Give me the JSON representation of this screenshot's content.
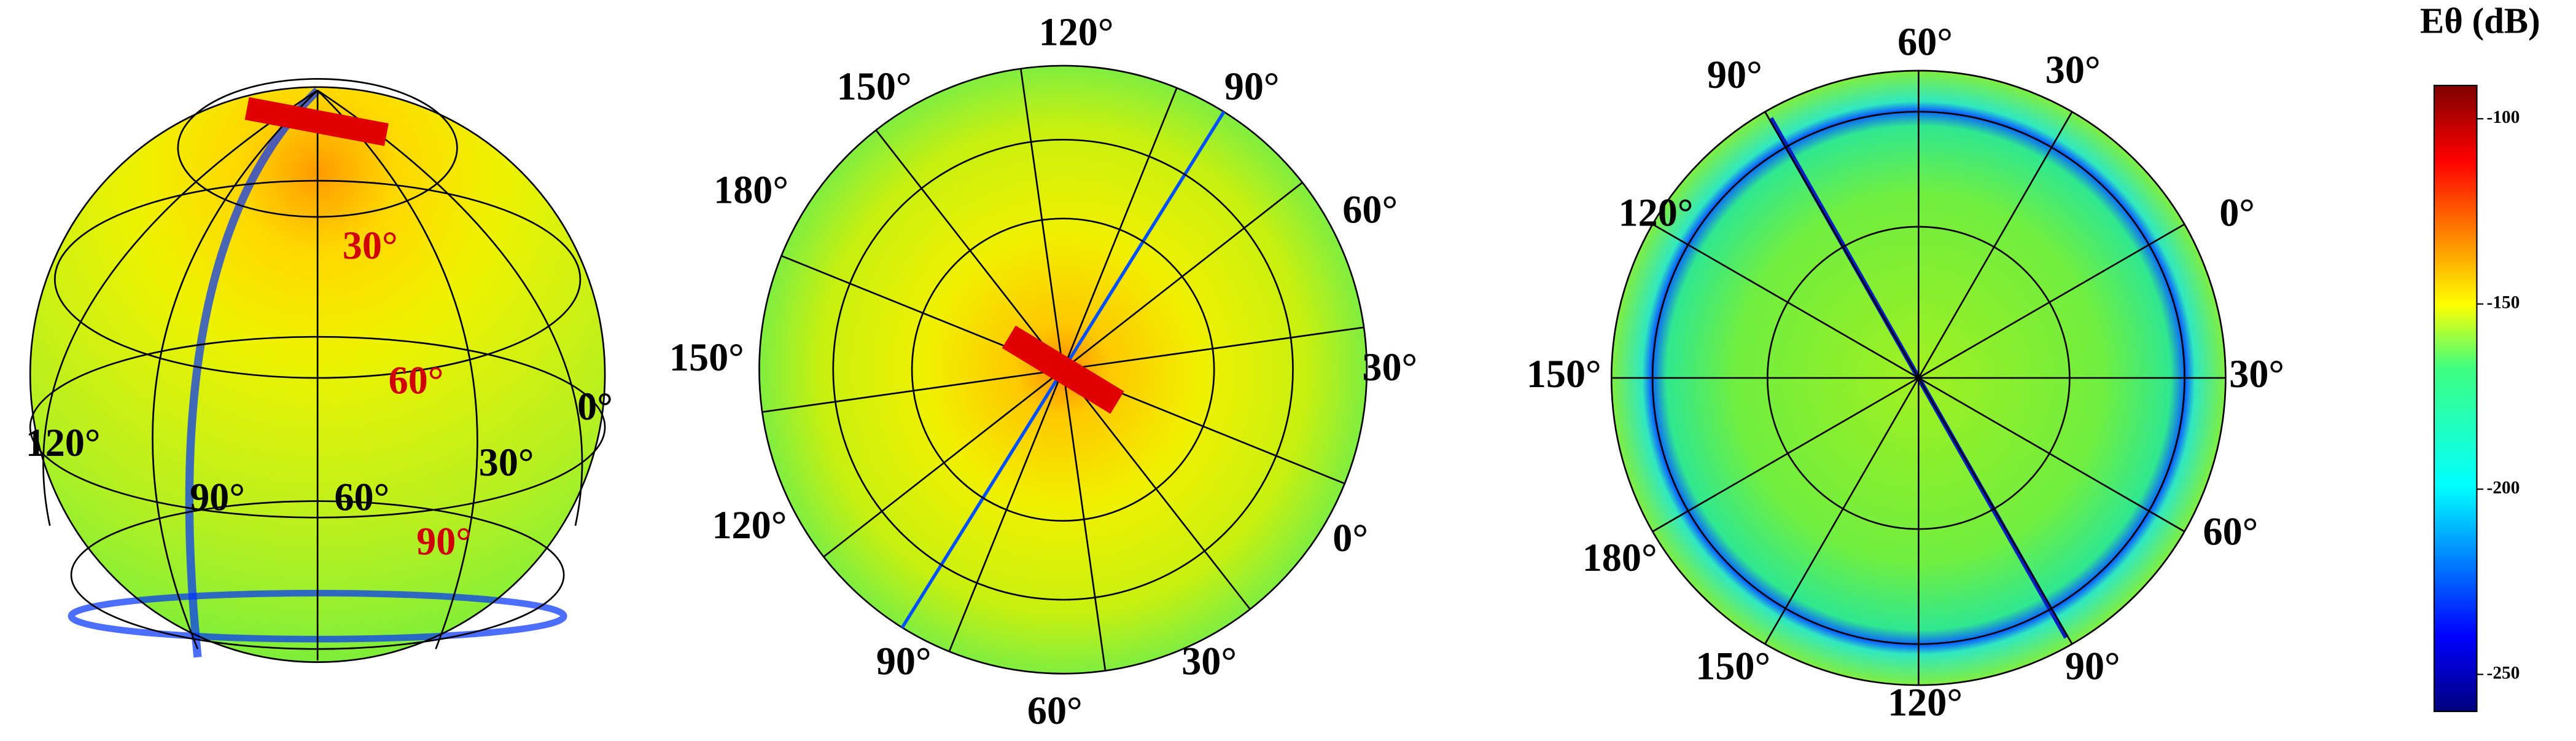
{
  "panels": [
    {
      "labels": [
        "30°",
        "60°",
        "90°",
        "0°",
        "30°",
        "60°",
        "90°",
        "120°"
      ]
    },
    {
      "labels": [
        "120°",
        "90°",
        "150°",
        "180°",
        "60°",
        "30°",
        "150°",
        "120°",
        "0°",
        "90°",
        "30°",
        "60°"
      ]
    },
    {
      "labels": [
        "60°",
        "30°",
        "90°",
        "120°",
        "0°",
        "150°",
        "30°",
        "180°",
        "60°",
        "150°",
        "90°",
        "120°"
      ]
    }
  ],
  "colorbar": {
    "title": "Eθ (dB)",
    "lim": [
      -260,
      -91
    ],
    "ticks": [
      -100,
      -150,
      -200,
      -250
    ]
  }
}
